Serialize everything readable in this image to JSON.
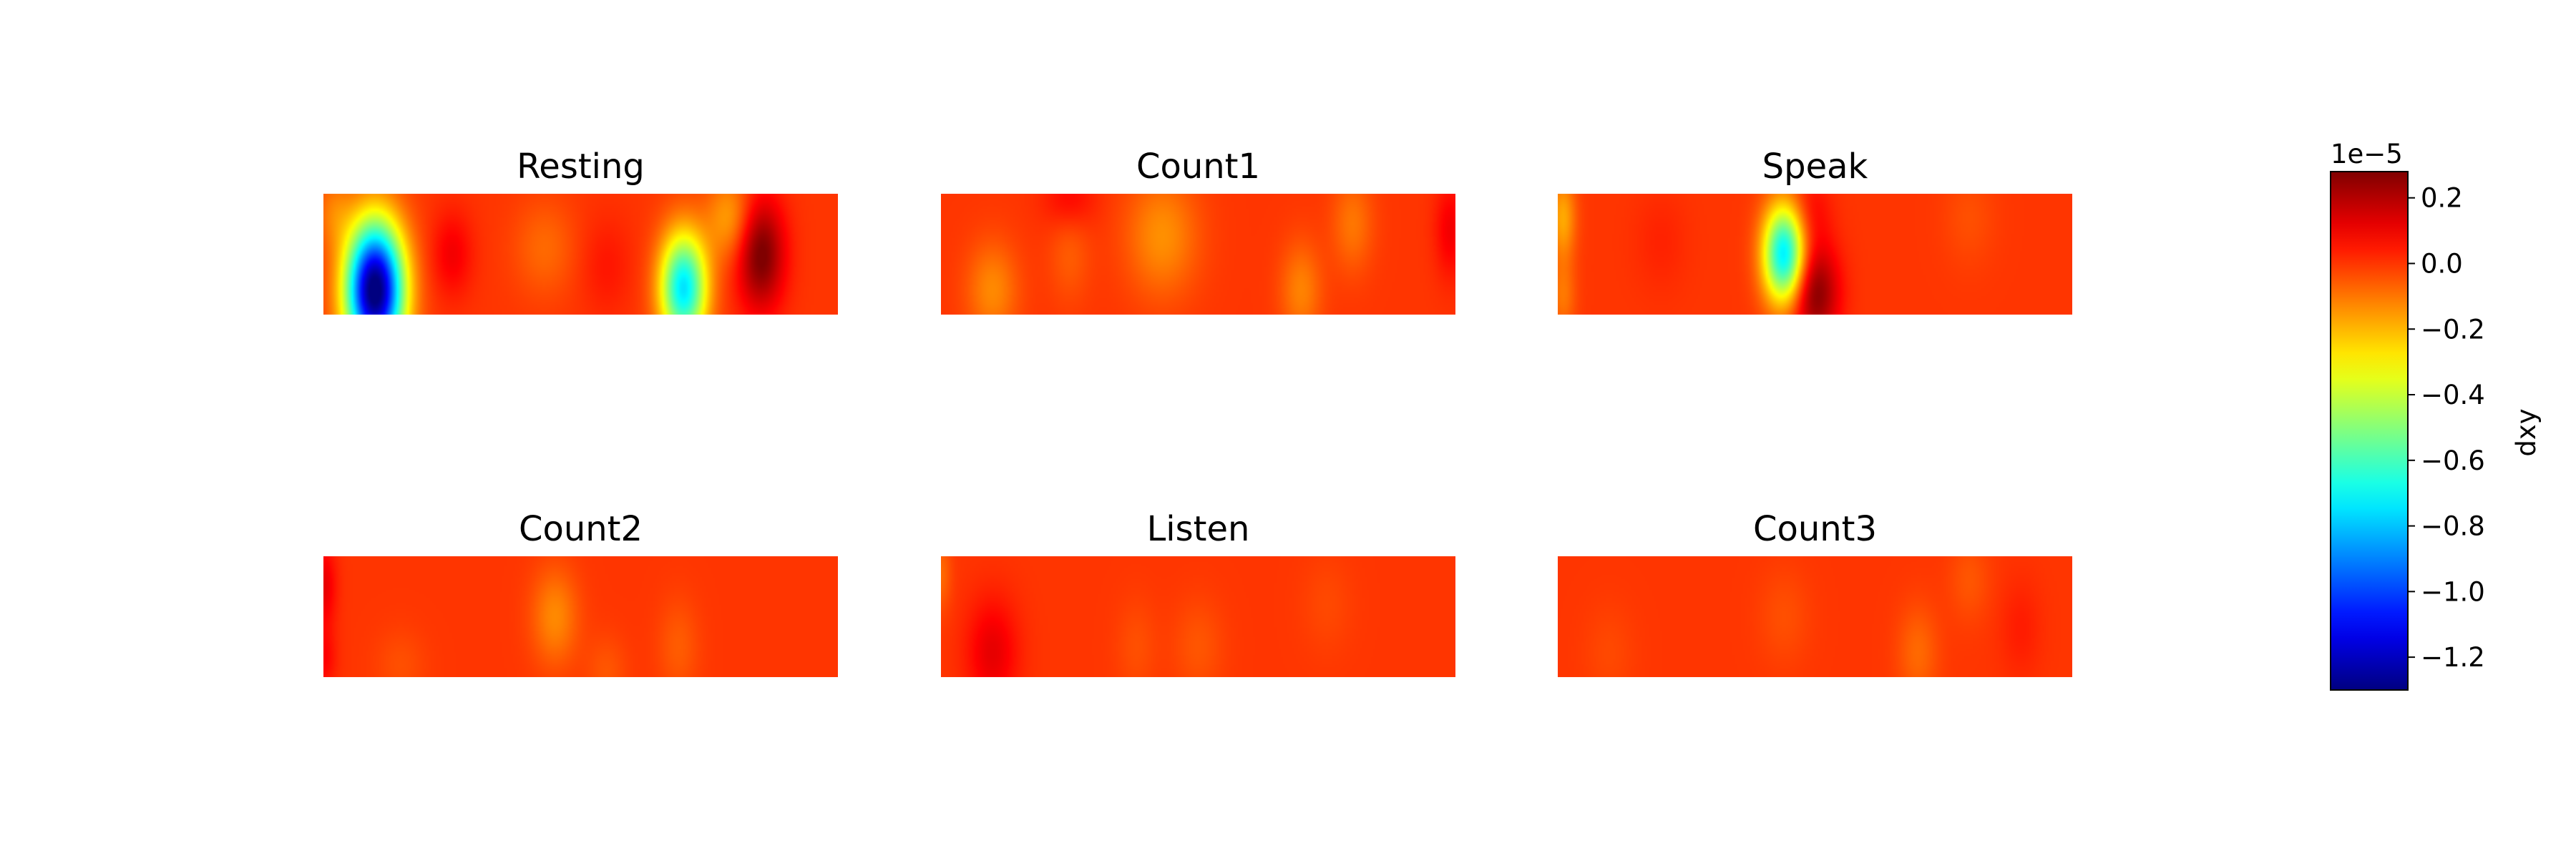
{
  "chart_data": {
    "type": "heatmap",
    "panels": [
      {
        "title": "Resting",
        "blobs": [
          {
            "x": 0.1,
            "y": 0.8,
            "rx": 0.055,
            "ry": 0.55,
            "v": -1.35
          },
          {
            "x": 0.7,
            "y": 0.78,
            "rx": 0.045,
            "ry": 0.45,
            "v": -0.75
          },
          {
            "x": 0.85,
            "y": 0.5,
            "rx": 0.045,
            "ry": 0.45,
            "v": 0.3
          },
          {
            "x": 0.25,
            "y": 0.5,
            "rx": 0.04,
            "ry": 0.35,
            "v": 0.1
          },
          {
            "x": 0.79,
            "y": 0.2,
            "rx": 0.045,
            "ry": 0.35,
            "v": -0.17
          },
          {
            "x": 0.43,
            "y": 0.45,
            "rx": 0.06,
            "ry": 0.4,
            "v": -0.08
          },
          {
            "x": 0.02,
            "y": 0.15,
            "rx": 0.035,
            "ry": 0.3,
            "v": -0.1
          },
          {
            "x": 0.55,
            "y": 0.6,
            "rx": 0.05,
            "ry": 0.4,
            "v": 0.05
          }
        ]
      },
      {
        "title": "Count1",
        "blobs": [
          {
            "x": 0.43,
            "y": 0.35,
            "rx": 0.07,
            "ry": 0.5,
            "v": -0.14
          },
          {
            "x": 0.1,
            "y": 0.8,
            "rx": 0.05,
            "ry": 0.4,
            "v": -0.13
          },
          {
            "x": 0.7,
            "y": 0.8,
            "rx": 0.04,
            "ry": 0.4,
            "v": -0.12
          },
          {
            "x": 0.8,
            "y": 0.25,
            "rx": 0.04,
            "ry": 0.4,
            "v": -0.1
          },
          {
            "x": 0.25,
            "y": 0.5,
            "rx": 0.04,
            "ry": 0.4,
            "v": -0.06
          },
          {
            "x": 0.25,
            "y": 0.05,
            "rx": 0.05,
            "ry": 0.25,
            "v": 0.08
          },
          {
            "x": 0.99,
            "y": 0.3,
            "rx": 0.03,
            "ry": 0.4,
            "v": 0.1
          }
        ]
      },
      {
        "title": "Speak",
        "blobs": [
          {
            "x": 0.44,
            "y": 0.5,
            "rx": 0.04,
            "ry": 0.4,
            "v": -0.75
          },
          {
            "x": 0.5,
            "y": 0.82,
            "rx": 0.045,
            "ry": 0.4,
            "v": 0.28
          },
          {
            "x": 0.49,
            "y": 0.15,
            "rx": 0.04,
            "ry": 0.3,
            "v": 0.08
          },
          {
            "x": 0.01,
            "y": 0.2,
            "rx": 0.025,
            "ry": 0.35,
            "v": -0.18
          },
          {
            "x": 0.01,
            "y": 0.85,
            "rx": 0.025,
            "ry": 0.3,
            "v": -0.1
          },
          {
            "x": 0.2,
            "y": 0.4,
            "rx": 0.05,
            "ry": 0.4,
            "v": 0.03
          },
          {
            "x": 0.8,
            "y": 0.2,
            "rx": 0.05,
            "ry": 0.4,
            "v": -0.04
          }
        ]
      },
      {
        "title": "Count2",
        "blobs": [
          {
            "x": 0.45,
            "y": 0.5,
            "rx": 0.045,
            "ry": 0.4,
            "v": -0.13
          },
          {
            "x": 0.0,
            "y": 0.25,
            "rx": 0.025,
            "ry": 0.35,
            "v": 0.12
          },
          {
            "x": 0.0,
            "y": 0.85,
            "rx": 0.025,
            "ry": 0.25,
            "v": 0.08
          },
          {
            "x": 0.69,
            "y": 0.75,
            "rx": 0.04,
            "ry": 0.4,
            "v": -0.06
          },
          {
            "x": 0.55,
            "y": 0.95,
            "rx": 0.04,
            "ry": 0.3,
            "v": -0.05
          },
          {
            "x": 0.15,
            "y": 0.9,
            "rx": 0.05,
            "ry": 0.3,
            "v": -0.04
          }
        ]
      },
      {
        "title": "Listen",
        "blobs": [
          {
            "x": 0.1,
            "y": 0.8,
            "rx": 0.05,
            "ry": 0.45,
            "v": 0.12
          },
          {
            "x": 0.0,
            "y": 0.15,
            "rx": 0.02,
            "ry": 0.3,
            "v": -0.08
          },
          {
            "x": 0.5,
            "y": 0.75,
            "rx": 0.05,
            "ry": 0.4,
            "v": -0.05
          },
          {
            "x": 0.38,
            "y": 0.75,
            "rx": 0.04,
            "ry": 0.4,
            "v": -0.04
          },
          {
            "x": 0.75,
            "y": 0.4,
            "rx": 0.05,
            "ry": 0.4,
            "v": -0.03
          }
        ]
      },
      {
        "title": "Count3",
        "blobs": [
          {
            "x": 0.7,
            "y": 0.8,
            "rx": 0.04,
            "ry": 0.4,
            "v": -0.08
          },
          {
            "x": 0.8,
            "y": 0.2,
            "rx": 0.04,
            "ry": 0.35,
            "v": -0.05
          },
          {
            "x": 0.44,
            "y": 0.5,
            "rx": 0.05,
            "ry": 0.4,
            "v": -0.04
          },
          {
            "x": 0.1,
            "y": 0.8,
            "rx": 0.05,
            "ry": 0.4,
            "v": -0.03
          },
          {
            "x": 0.9,
            "y": 0.6,
            "rx": 0.04,
            "ry": 0.4,
            "v": 0.04
          }
        ]
      }
    ],
    "background_value": 0.0,
    "colormap": "jet",
    "colorbar": {
      "vmin": -1.3,
      "vmax": 0.28,
      "ticks": [
        0.2,
        0.0,
        -0.2,
        -0.4,
        -0.6,
        -0.8,
        -1.0,
        -1.2
      ],
      "tick_labels": [
        "0.2",
        "0.0",
        "−0.2",
        "−0.4",
        "−0.6",
        "−0.8",
        "−1.0",
        "−1.2"
      ],
      "scale_label": "1e−5",
      "label": "dxy"
    }
  }
}
